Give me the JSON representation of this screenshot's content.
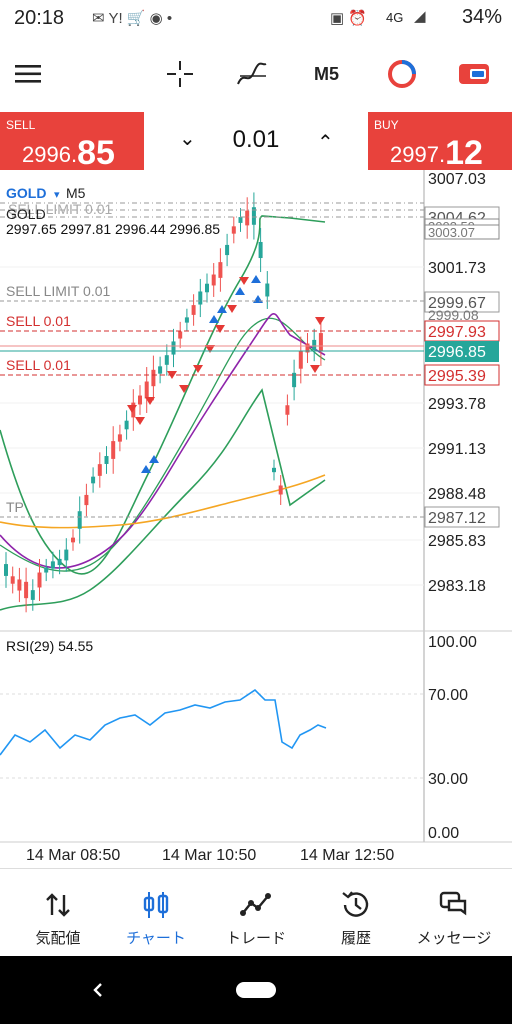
{
  "status_bar": {
    "time": "20:18",
    "network": "4G",
    "battery": "34%"
  },
  "toolbar": {
    "timeframe": "M5",
    "icons": [
      "menu-icon",
      "crosshair-icon",
      "indicators-icon",
      "timeframe",
      "objects-icon",
      "trade-icon"
    ]
  },
  "trade_panel": {
    "sell_label": "SELL",
    "sell_price_main": "2996.",
    "sell_price_big": "85",
    "buy_label": "BUY",
    "buy_price_main": "2997.",
    "buy_price_big": "12",
    "volume": "0.01"
  },
  "chart": {
    "symbol": "GOLD",
    "timeframe": "M5",
    "name_line": "GOLD",
    "ohlc": "2997.65 2997.81 2996.44 2996.85",
    "sell_limit_label": "SELL LIMIT 0.01",
    "sell1_label": "SELL 0.01",
    "sell2_label": "SELL 0.01",
    "tp_label": "TP",
    "price_axis": [
      "3007.03",
      "3004.62",
      "3001.73",
      "2999.67",
      "2997.93",
      "2996.85",
      "2995.39",
      "2993.78",
      "2991.13",
      "2988.48",
      "2987.12",
      "2985.83",
      "2983.18"
    ],
    "stacked_tags": [
      "3003.59",
      "3003.07",
      "2999.08"
    ],
    "rsi_label": "RSI(29) 54.55",
    "rsi_axis": [
      "100.00",
      "70.00",
      "30.00",
      "0.00"
    ],
    "time_axis": [
      "14 Mar 08:50",
      "14 Mar 10:50",
      "14 Mar 12:50"
    ],
    "colors": {
      "sell_line": "#d32f2f",
      "current_price_tag": "#26a69a",
      "bollinger": "#2e9e5b",
      "ma_purple": "#8e24aa",
      "ma_orange": "#f5a623",
      "rsi_line": "#2196f3",
      "up_arrow": "#1e6fd9",
      "down_arrow": "#e53935"
    }
  },
  "bottom_nav": {
    "items": [
      {
        "label": "気配値",
        "icon": "quotes-icon"
      },
      {
        "label": "チャート",
        "icon": "chart-icon"
      },
      {
        "label": "トレード",
        "icon": "trade-icon"
      },
      {
        "label": "履歴",
        "icon": "history-icon"
      },
      {
        "label": "メッセージ",
        "icon": "messages-icon"
      }
    ],
    "active": 1
  }
}
